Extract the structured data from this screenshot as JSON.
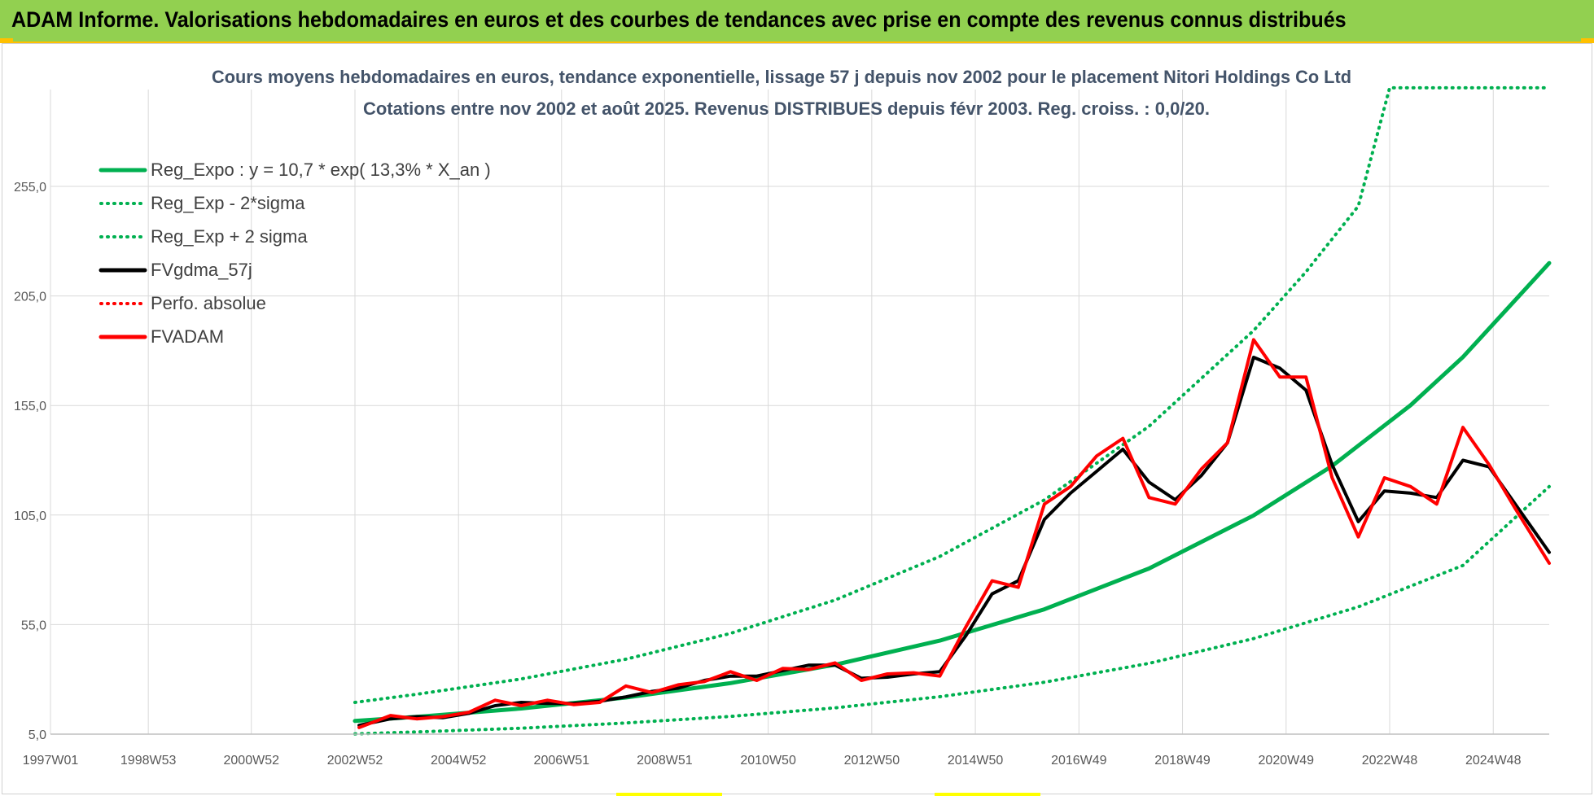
{
  "header": {
    "title": "ADAM Informe. Valorisations hebdomadaires en euros et des courbes de tendances avec prise en compte des revenus connus distribués"
  },
  "chart_data": {
    "type": "line",
    "title": "Cours moyens hebdomadaires en euros, tendance exponentielle, lissage 57 j depuis nov 2002 pour le placement Nitori Holdings Co Ltd",
    "subtitle": "Cotations entre nov 2002 et août 2025.  Revenus DISTRIBUES depuis févr 2003.  Reg. croiss. : 0,0/20.",
    "xlabel": "",
    "ylabel": "",
    "xlim": [
      1997.0,
      2025.65
    ],
    "ylim": [
      5,
      300
    ],
    "y_ticks": [
      "5,0",
      "55,0",
      "105,0",
      "155,0",
      "205,0",
      "255,0"
    ],
    "x_ticks": [
      {
        "label": "1997W01",
        "x": 1997.0
      },
      {
        "label": "1998W53",
        "x": 1998.87
      },
      {
        "label": "2000W52",
        "x": 2000.84
      },
      {
        "label": "2002W52",
        "x": 2002.82
      },
      {
        "label": "2004W52",
        "x": 2004.8
      },
      {
        "label": "2006W51",
        "x": 2006.77
      },
      {
        "label": "2008W51",
        "x": 2008.74
      },
      {
        "label": "2010W50",
        "x": 2010.72
      },
      {
        "label": "2012W50",
        "x": 2012.7
      },
      {
        "label": "2014W50",
        "x": 2014.68
      },
      {
        "label": "2016W49",
        "x": 2016.66
      },
      {
        "label": "2018W49",
        "x": 2018.64
      },
      {
        "label": "2020W49",
        "x": 2020.62
      },
      {
        "label": "2022W48",
        "x": 2022.6
      },
      {
        "label": "2024W48",
        "x": 2024.58
      }
    ],
    "grid": true,
    "legend_position": "top-left",
    "series": [
      {
        "name": "Reg_Expo : y = 10,7 * exp( 13,3% *  X_an )",
        "color": "#00b050",
        "style": "solid",
        "width": 5,
        "x": [
          2002.82,
          2004.0,
          2006.0,
          2008.0,
          2010.0,
          2012.0,
          2014.0,
          2016.0,
          2018.0,
          2020.0,
          2021.5,
          2023.0,
          2024.0,
          2025.65
        ],
        "y": [
          11.0,
          12.9,
          16.7,
          21.7,
          28.3,
          36.7,
          47.7,
          62.0,
          80.6,
          104.8,
          127.4,
          155.1,
          177.1,
          220.0
        ]
      },
      {
        "name": "Reg_Exp - 2*sigma",
        "color": "#00b050",
        "style": "dotted",
        "width": 4,
        "x": [
          2002.82,
          2004.0,
          2006.0,
          2008.0,
          2010.0,
          2012.0,
          2014.0,
          2016.0,
          2018.0,
          2020.0,
          2022.0,
          2024.0,
          2025.65
        ],
        "y": [
          5.1,
          6.0,
          7.7,
          10.1,
          13.1,
          17.0,
          22.1,
          28.7,
          37.3,
          48.6,
          63.1,
          82.0,
          118.0
        ]
      },
      {
        "name": "Reg_Exp + 2 sigma",
        "color": "#00b050",
        "style": "dotted",
        "width": 4,
        "x": [
          2002.82,
          2004.0,
          2006.0,
          2008.0,
          2010.0,
          2012.0,
          2014.0,
          2016.0,
          2018.0,
          2020.0,
          2021.0,
          2022.0,
          2022.6,
          2025.65
        ],
        "y": [
          19.5,
          23.2,
          30.2,
          39.2,
          51.0,
          66.2,
          86.1,
          111.9,
          145.5,
          189.2,
          216.0,
          246.0,
          300.0,
          300.0
        ]
      },
      {
        "name": "FVgdma_57j",
        "color": "#000000",
        "style": "solid",
        "width": 4,
        "x": [
          2002.9,
          2003.5,
          2004.0,
          2004.5,
          2005.0,
          2005.5,
          2006.0,
          2006.5,
          2007.0,
          2007.5,
          2008.0,
          2008.5,
          2009.0,
          2009.5,
          2010.0,
          2010.5,
          2011.0,
          2011.5,
          2012.0,
          2012.5,
          2013.0,
          2013.5,
          2014.0,
          2014.5,
          2015.0,
          2015.5,
          2016.0,
          2016.5,
          2017.0,
          2017.5,
          2018.0,
          2018.5,
          2019.0,
          2019.5,
          2020.0,
          2020.5,
          2021.0,
          2021.5,
          2022.0,
          2022.5,
          2023.0,
          2023.5,
          2024.0,
          2024.5,
          2025.0,
          2025.65
        ],
        "y": [
          9.0,
          12.0,
          13.0,
          12.5,
          14.5,
          18.0,
          19.5,
          19.0,
          19.0,
          20.0,
          22.0,
          24.5,
          26.0,
          29.5,
          31.5,
          31.5,
          34.0,
          36.5,
          36.5,
          30.5,
          31.0,
          32.5,
          33.5,
          50.0,
          69.0,
          75.0,
          103.0,
          115.0,
          125.0,
          135.0,
          120.0,
          112.0,
          123.0,
          138.0,
          177.0,
          172.0,
          162.0,
          128.0,
          102.0,
          116.0,
          115.0,
          113.0,
          130.0,
          127.0,
          110.0,
          88.0
        ]
      },
      {
        "name": "Perfo. absolue",
        "color": "#ff0000",
        "style": "dotted",
        "width": 3,
        "x": [
          2002.9,
          2003.5,
          2004.0,
          2004.5,
          2005.0,
          2005.5,
          2006.0,
          2006.5,
          2007.0,
          2007.5,
          2008.0,
          2008.5,
          2009.0,
          2009.5,
          2010.0,
          2010.5,
          2011.0,
          2011.5,
          2012.0,
          2012.5,
          2013.0,
          2013.5,
          2014.0,
          2014.5,
          2015.0,
          2015.5,
          2016.0,
          2016.5,
          2017.0,
          2017.5,
          2018.0,
          2018.5,
          2019.0,
          2019.5,
          2020.0,
          2020.5,
          2021.0,
          2021.5,
          2022.0,
          2022.5,
          2023.0,
          2023.5,
          2024.0,
          2024.5,
          2025.0,
          2025.65
        ],
        "y": [
          8.0,
          13.5,
          12.0,
          13.0,
          15.0,
          20.5,
          18.0,
          20.5,
          18.5,
          19.5,
          27.0,
          24.0,
          27.5,
          29.0,
          33.5,
          29.5,
          35.0,
          34.5,
          37.5,
          29.5,
          32.5,
          33.0,
          31.5,
          54.0,
          75.0,
          72.0,
          110.0,
          118.0,
          132.0,
          140.0,
          113.0,
          110.0,
          126.0,
          138.0,
          185.0,
          168.0,
          168.0,
          122.0,
          95.0,
          122.0,
          118.0,
          110.0,
          145.0,
          128.0,
          108.0,
          83.0
        ]
      },
      {
        "name": "FVADAM",
        "color": "#ff0000",
        "style": "solid",
        "width": 4,
        "x": [
          2002.9,
          2003.5,
          2004.0,
          2004.5,
          2005.0,
          2005.5,
          2006.0,
          2006.5,
          2007.0,
          2007.5,
          2008.0,
          2008.5,
          2009.0,
          2009.5,
          2010.0,
          2010.5,
          2011.0,
          2011.5,
          2012.0,
          2012.5,
          2013.0,
          2013.5,
          2014.0,
          2014.5,
          2015.0,
          2015.5,
          2016.0,
          2016.5,
          2017.0,
          2017.5,
          2018.0,
          2018.5,
          2019.0,
          2019.5,
          2020.0,
          2020.5,
          2021.0,
          2021.5,
          2022.0,
          2022.5,
          2023.0,
          2023.5,
          2024.0,
          2024.5,
          2025.0,
          2025.65
        ],
        "y": [
          8.0,
          13.5,
          12.0,
          13.0,
          15.0,
          20.5,
          18.0,
          20.5,
          18.5,
          19.5,
          27.0,
          24.0,
          27.5,
          29.0,
          33.5,
          29.5,
          35.0,
          34.5,
          37.5,
          29.5,
          32.5,
          33.0,
          31.5,
          54.0,
          75.0,
          72.0,
          110.0,
          118.0,
          132.0,
          140.0,
          113.0,
          110.0,
          126.0,
          138.0,
          185.0,
          168.0,
          168.0,
          122.0,
          95.0,
          122.0,
          118.0,
          110.0,
          145.0,
          128.0,
          108.0,
          83.0
        ]
      }
    ]
  }
}
